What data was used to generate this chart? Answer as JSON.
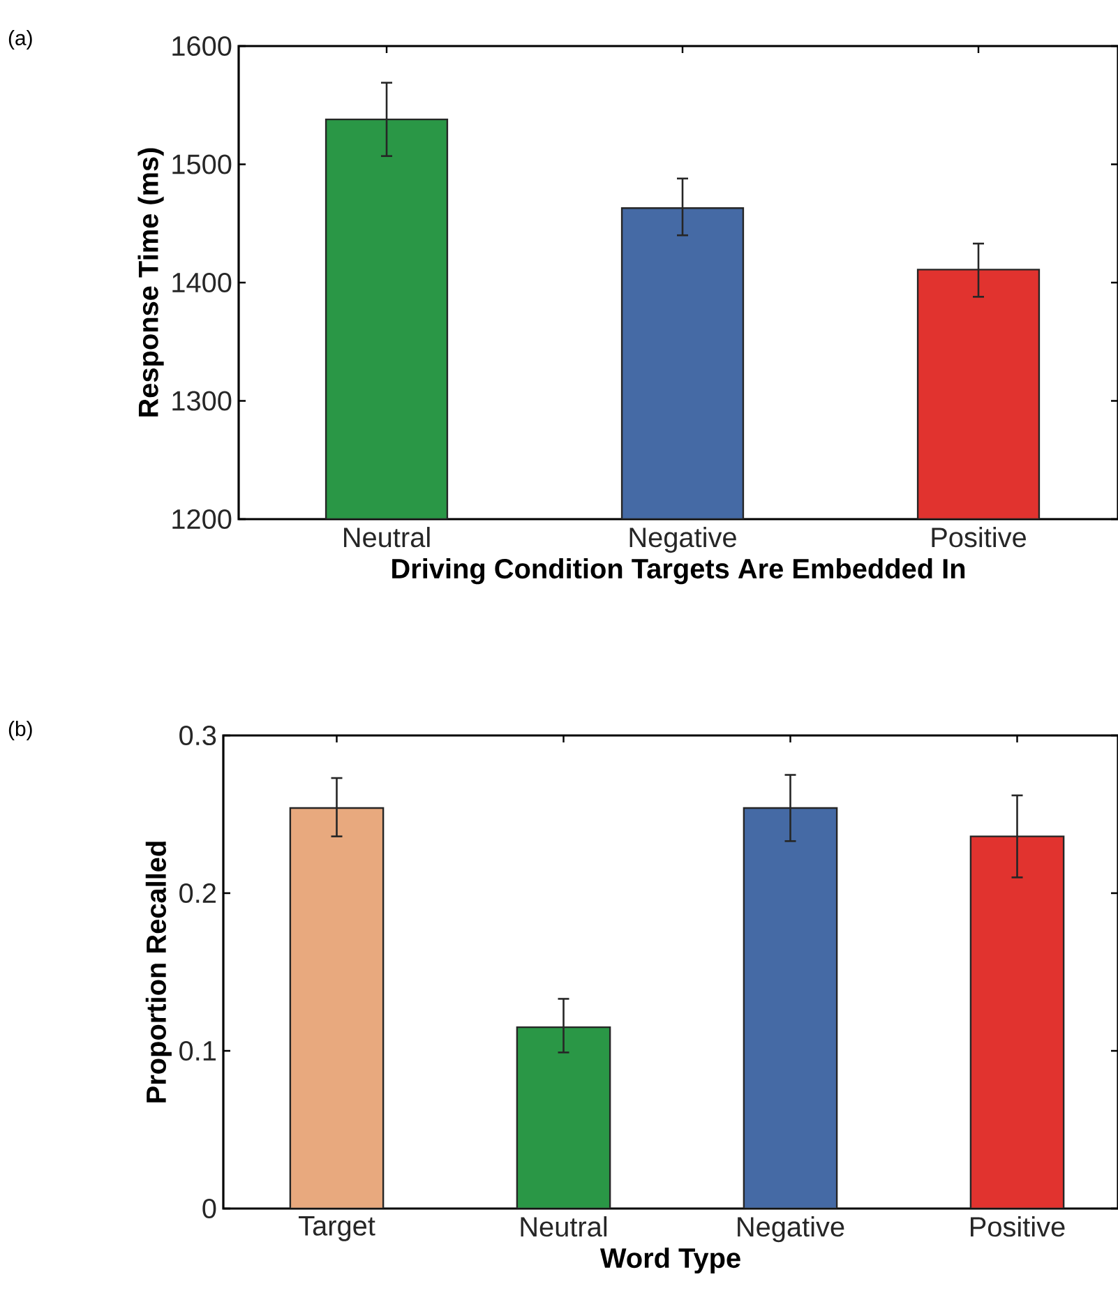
{
  "chart_data": [
    {
      "type": "bar",
      "annotations": [
        "(a)"
      ],
      "xlabel": "Driving Condition Targets Are Embedded In",
      "ylabel": "Response Time (ms)",
      "categories": [
        "Neutral",
        "Negative",
        "Positive"
      ],
      "values": [
        1538,
        1463,
        1411
      ],
      "colors": [
        "#2a9746",
        "#456aa5",
        "#e1332f"
      ],
      "errors": [
        [
          1507,
          1569
        ],
        [
          1440,
          1488
        ],
        [
          1388,
          1433
        ]
      ],
      "ylim": [
        1200,
        1600
      ],
      "yticks": [
        1200,
        1300,
        1400,
        1500,
        1600
      ]
    },
    {
      "type": "bar",
      "annotations": [
        "(b)"
      ],
      "xlabel": "Word Type",
      "ylabel": "Proportion Recalled",
      "categories": [
        "Target",
        "Neutral",
        "Negative",
        "Positive"
      ],
      "values": [
        0.254,
        0.115,
        0.254,
        0.236
      ],
      "colors": [
        "#e8a97e",
        "#2a9746",
        "#456aa5",
        "#e1332f"
      ],
      "errors": [
        [
          0.236,
          0.273
        ],
        [
          0.099,
          0.133
        ],
        [
          0.233,
          0.275
        ],
        [
          0.21,
          0.262
        ]
      ],
      "ylim": [
        0,
        0.3
      ],
      "yticks": [
        0,
        0.1,
        0.2,
        0.3
      ]
    }
  ]
}
